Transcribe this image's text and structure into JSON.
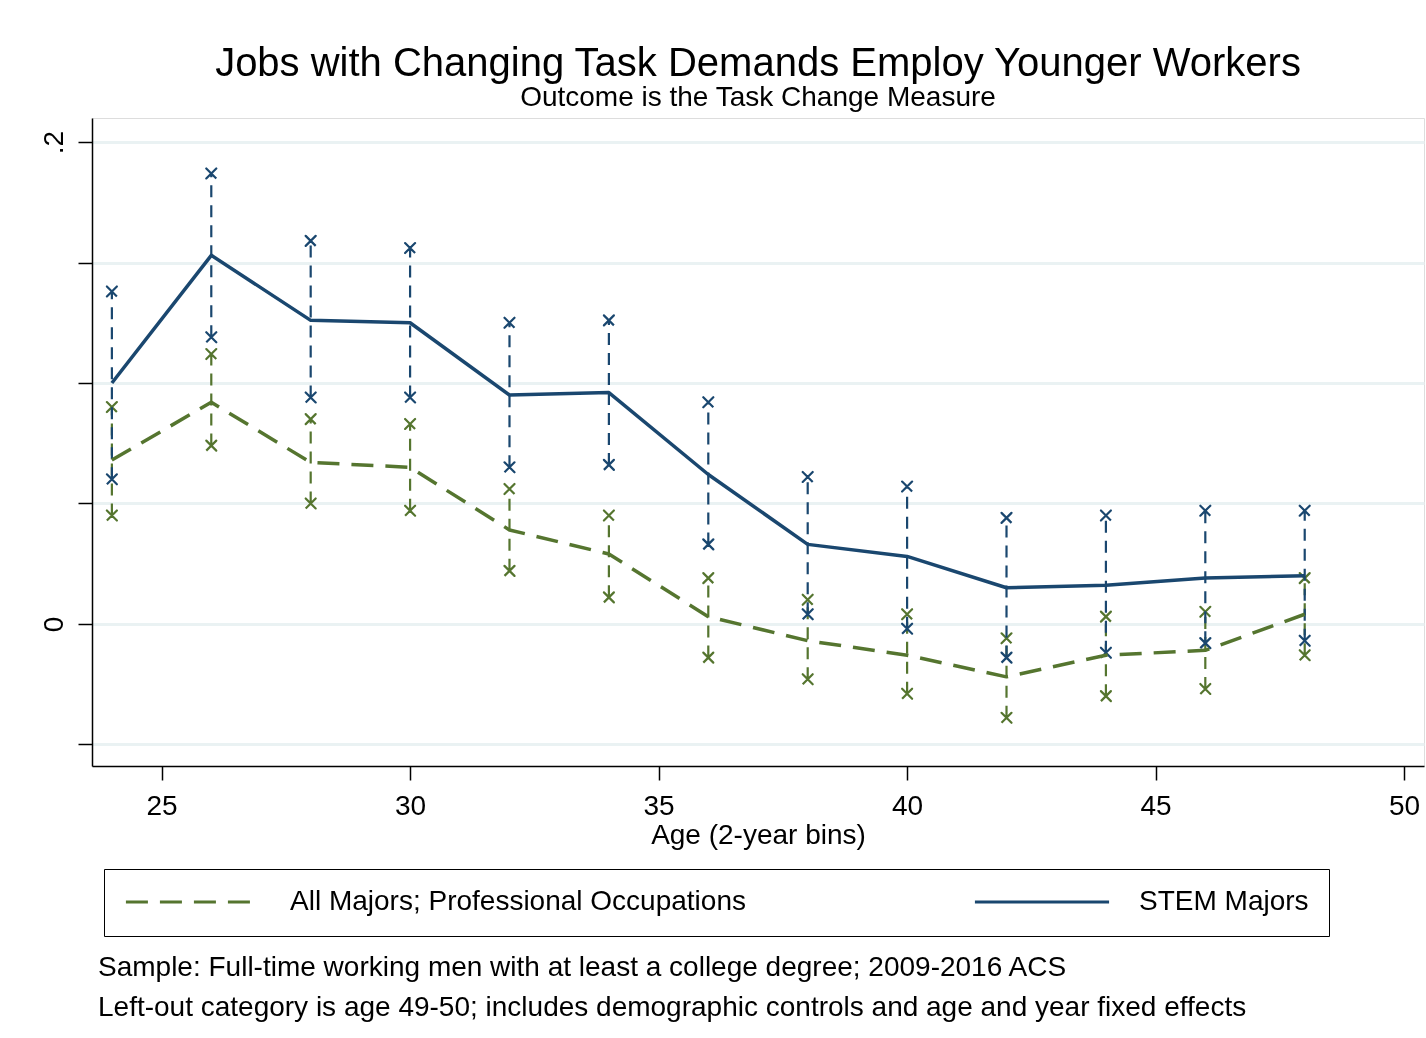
{
  "chart_data": {
    "type": "line",
    "title": "Jobs with Changing Task Demands Employ Younger Workers",
    "subtitle": "Outcome is the Task Change Measure",
    "xlabel": "Age (2-year bins)",
    "x": [
      24,
      26,
      28,
      30,
      32,
      34,
      36,
      38,
      40,
      42,
      44,
      46,
      48
    ],
    "series": [
      {
        "name": "All Majors; Professional Occupations",
        "color": "#55752f",
        "line_style": "dashed",
        "values": [
          0.068,
          0.092,
          0.067,
          0.065,
          0.039,
          0.029,
          0.003,
          -0.007,
          -0.013,
          -0.022,
          -0.013,
          -0.011,
          0.004
        ],
        "errors": [
          [
            0.045,
            0.09
          ],
          [
            0.074,
            0.112
          ],
          [
            0.05,
            0.085
          ],
          [
            0.047,
            0.083
          ],
          [
            0.022,
            0.056
          ],
          [
            0.011,
            0.045
          ],
          [
            -0.014,
            0.019
          ],
          [
            -0.023,
            0.01
          ],
          [
            -0.029,
            0.004
          ],
          [
            -0.039,
            -0.006
          ],
          [
            -0.03,
            0.003
          ],
          [
            -0.027,
            0.005
          ],
          [
            -0.013,
            0.019
          ]
        ]
      },
      {
        "name": "STEM Majors",
        "color": "#1a476f",
        "line_style": "solid",
        "values": [
          0.1,
          0.153,
          0.126,
          0.125,
          0.095,
          0.096,
          0.062,
          0.033,
          0.028,
          0.015,
          0.016,
          0.019,
          0.02
        ],
        "errors": [
          [
            0.06,
            0.138
          ],
          [
            0.119,
            0.187
          ],
          [
            0.094,
            0.159
          ],
          [
            0.094,
            0.156
          ],
          [
            0.065,
            0.125
          ],
          [
            0.066,
            0.126
          ],
          [
            0.033,
            0.092
          ],
          [
            0.004,
            0.061
          ],
          [
            -0.002,
            0.057
          ],
          [
            -0.014,
            0.044
          ],
          [
            -0.012,
            0.045
          ],
          [
            -0.008,
            0.047
          ],
          [
            -0.007,
            0.047
          ]
        ]
      }
    ],
    "xlim": [
      23.6,
      50.4
    ],
    "xticks": [
      25,
      30,
      35,
      40,
      45,
      50
    ],
    "ylim": [
      -0.059,
      0.21
    ],
    "yticks": [
      {
        "value": -0.05,
        "label": null
      },
      0,
      {
        "value": 0.05,
        "label": null
      },
      {
        "value": 0.1,
        "label": null
      },
      {
        "value": 0.15,
        "label": null
      },
      {
        "value": 0.2,
        "label": ".2"
      }
    ],
    "grid": "y",
    "legend": "bottom",
    "annotations": [
      "Sample: Full-time working men with at least a college degree; 2009-2016 ACS",
      "Left-out category is age 49-50; includes demographic controls and age and year fixed effects"
    ]
  }
}
